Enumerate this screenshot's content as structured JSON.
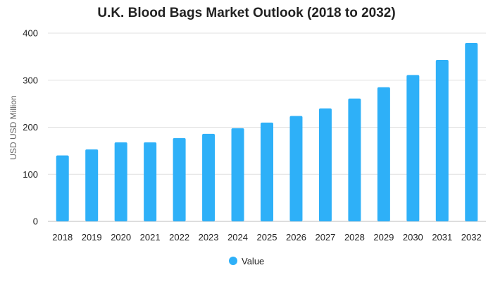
{
  "colors": {
    "bar": "#2EB0F8",
    "grid": "#e0e0e0",
    "axis": "#bdbdbd"
  },
  "chart_data": {
    "type": "bar",
    "title": "U.K. Blood Bags Market Outlook (2018 to 2032)",
    "xlabel": "",
    "ylabel": "USD USD Million",
    "ylim": [
      0,
      400
    ],
    "yticks": [
      "0",
      "100",
      "200",
      "300",
      "400"
    ],
    "grid": true,
    "legend_position": "bottom",
    "categories": [
      "2018",
      "2019",
      "2020",
      "2021",
      "2022",
      "2023",
      "2024",
      "2025",
      "2026",
      "2027",
      "2028",
      "2029",
      "2030",
      "2031",
      "2032"
    ],
    "series": [
      {
        "name": "Value",
        "values": [
          140,
          153,
          168,
          168,
          177,
          186,
          198,
          210,
          224,
          240,
          261,
          285,
          311,
          343,
          379
        ]
      }
    ]
  }
}
